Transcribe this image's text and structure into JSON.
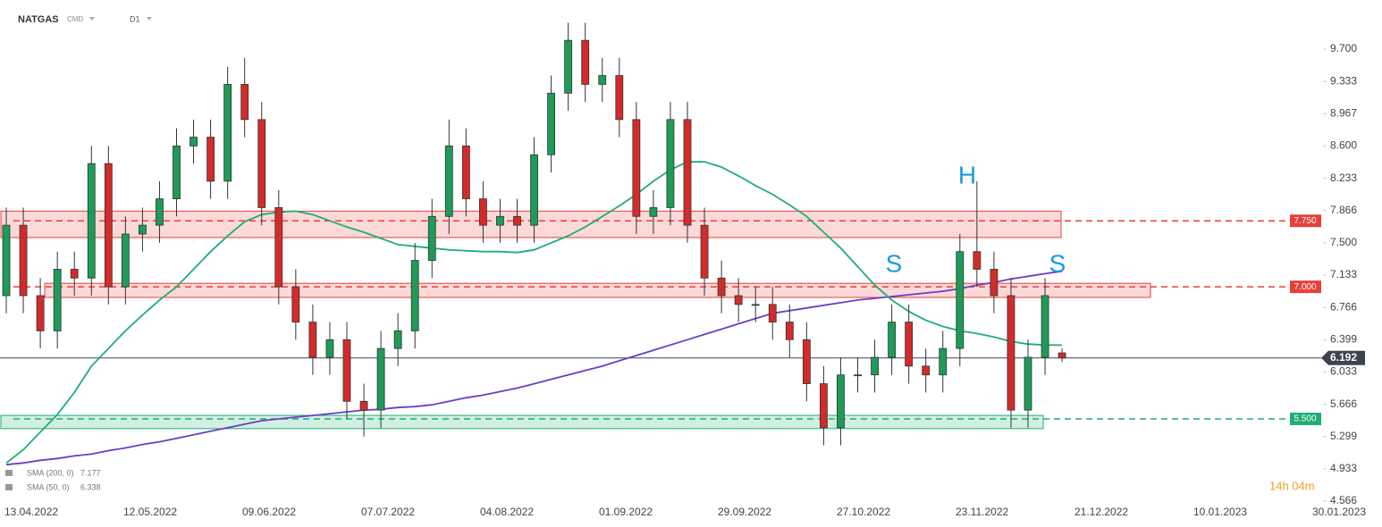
{
  "chart_data": {
    "type": "candlestick",
    "title": "NATGAS",
    "instrument_type": "CMD",
    "interval": "D1",
    "countdown": "14h 04m",
    "x_labels": [
      "13.04.2022",
      "12.05.2022",
      "09.06.2022",
      "07.07.2022",
      "04.08.2022",
      "01.09.2022",
      "29.09.2022",
      "27.10.2022",
      "23.11.2022",
      "21.12.2022",
      "10.01.2023",
      "30.01.2023"
    ],
    "up_color": "#1e9b58",
    "down_color": "#d22b2b",
    "open": [
      6.9,
      7.7,
      6.9,
      6.5,
      7.2,
      7.1,
      8.4,
      7.0,
      7.6,
      7.7,
      8.0,
      8.6,
      8.7,
      8.2,
      9.3,
      8.9,
      7.9,
      7.0,
      6.6,
      6.2,
      6.4,
      5.7,
      5.6,
      6.3,
      6.5,
      7.3,
      7.8,
      8.6,
      8.0,
      7.7,
      7.8,
      7.7,
      8.5,
      9.2,
      9.8,
      9.3,
      9.4,
      8.9,
      7.8,
      7.9,
      8.9,
      7.7,
      7.1,
      6.9,
      6.8,
      6.8,
      6.6,
      6.4,
      5.9,
      5.4,
      6.0,
      6.0,
      6.2,
      6.6,
      6.1,
      6.0,
      6.3,
      7.4,
      7.2,
      6.9,
      5.6,
      6.2,
      6.25
    ],
    "high": [
      7.9,
      7.9,
      7.1,
      7.4,
      7.4,
      8.6,
      8.6,
      7.8,
      7.9,
      8.2,
      8.8,
      8.9,
      8.9,
      9.5,
      9.6,
      9.1,
      8.1,
      7.2,
      6.8,
      6.6,
      6.6,
      5.9,
      6.5,
      6.7,
      7.5,
      8.0,
      8.9,
      8.8,
      8.2,
      8.0,
      8.0,
      8.7,
      9.4,
      10.0,
      10.0,
      9.6,
      9.6,
      9.1,
      8.1,
      9.1,
      9.1,
      7.9,
      7.3,
      7.1,
      7.0,
      7.0,
      6.8,
      6.6,
      6.1,
      6.2,
      6.2,
      6.4,
      6.8,
      6.8,
      6.3,
      6.5,
      7.6,
      8.2,
      7.4,
      7.1,
      6.4,
      7.1,
      6.3
    ],
    "low": [
      6.7,
      6.7,
      6.3,
      6.3,
      6.9,
      6.9,
      6.8,
      6.8,
      7.4,
      7.5,
      7.8,
      8.4,
      8.0,
      8.0,
      8.7,
      7.7,
      6.8,
      6.4,
      6.0,
      6.0,
      5.5,
      5.3,
      5.4,
      6.1,
      6.3,
      7.1,
      7.6,
      7.8,
      7.5,
      7.5,
      7.5,
      7.5,
      8.3,
      9.0,
      9.1,
      9.1,
      8.7,
      7.6,
      7.6,
      7.7,
      7.5,
      6.9,
      6.7,
      6.6,
      6.6,
      6.4,
      6.2,
      5.7,
      5.2,
      5.2,
      5.8,
      5.8,
      6.0,
      5.9,
      5.8,
      5.8,
      6.1,
      7.0,
      6.7,
      5.4,
      5.4,
      6.0,
      6.15
    ],
    "close": [
      7.7,
      6.9,
      6.5,
      7.2,
      7.1,
      8.4,
      7.0,
      7.6,
      7.7,
      8.0,
      8.6,
      8.7,
      8.2,
      9.3,
      8.9,
      7.9,
      7.0,
      6.6,
      6.2,
      6.4,
      5.7,
      5.6,
      6.3,
      6.5,
      7.3,
      7.8,
      8.6,
      8.0,
      7.7,
      7.8,
      7.7,
      8.5,
      9.2,
      9.8,
      9.3,
      9.4,
      8.9,
      7.8,
      7.9,
      8.9,
      7.7,
      7.1,
      6.9,
      6.8,
      6.8,
      6.6,
      6.4,
      5.9,
      5.4,
      6.0,
      6.0,
      6.2,
      6.6,
      6.1,
      6.0,
      6.3,
      7.4,
      7.2,
      6.9,
      5.6,
      6.2,
      6.9,
      6.192
    ],
    "series": [
      {
        "name": "SMA (200, 0)",
        "color": "#6a3fc4",
        "values": [
          4.98,
          5.0,
          5.03,
          5.05,
          5.08,
          5.1,
          5.14,
          5.17,
          5.21,
          5.24,
          5.28,
          5.32,
          5.36,
          5.4,
          5.44,
          5.48,
          5.5,
          5.52,
          5.54,
          5.56,
          5.58,
          5.6,
          5.61,
          5.63,
          5.64,
          5.66,
          5.7,
          5.74,
          5.77,
          5.81,
          5.85,
          5.9,
          5.95,
          6.0,
          6.05,
          6.1,
          6.16,
          6.22,
          6.28,
          6.34,
          6.4,
          6.46,
          6.52,
          6.58,
          6.64,
          6.7,
          6.73,
          6.76,
          6.79,
          6.82,
          6.85,
          6.87,
          6.89,
          6.91,
          6.93,
          6.95,
          6.98,
          7.02,
          7.05,
          7.09,
          7.12,
          7.15,
          7.177
        ]
      },
      {
        "name": "SMA (50, 0)",
        "color": "#1fae74",
        "values": [
          5.0,
          5.15,
          5.35,
          5.55,
          5.8,
          6.1,
          6.3,
          6.5,
          6.68,
          6.85,
          7.0,
          7.2,
          7.4,
          7.58,
          7.74,
          7.82,
          7.85,
          7.86,
          7.82,
          7.75,
          7.68,
          7.62,
          7.55,
          7.48,
          7.46,
          7.44,
          7.42,
          7.41,
          7.4,
          7.4,
          7.39,
          7.42,
          7.5,
          7.58,
          7.68,
          7.8,
          7.92,
          8.05,
          8.2,
          8.33,
          8.42,
          8.42,
          8.36,
          8.26,
          8.15,
          8.05,
          7.93,
          7.8,
          7.62,
          7.44,
          7.23,
          7.02,
          6.85,
          6.72,
          6.62,
          6.55,
          6.5,
          6.47,
          6.43,
          6.38,
          6.35,
          6.34,
          6.338
        ]
      }
    ],
    "zones": [
      {
        "from": 7.56,
        "to": 7.86,
        "color": "#e8403a"
      },
      {
        "from": 6.88,
        "to": 7.04,
        "color": "#e8403a"
      },
      {
        "from": 5.39,
        "to": 5.54,
        "color": "#1fae74"
      }
    ],
    "levels": [
      {
        "value": 7.75,
        "label": "7.750",
        "color": "#e8403a"
      },
      {
        "value": 7.0,
        "label": "7.000",
        "color": "#e8403a"
      },
      {
        "value": 5.5,
        "label": "5.500",
        "color": "#1fae74"
      }
    ],
    "current_price": 6.192,
    "annotations": [
      "S",
      "H",
      "S"
    ],
    "ylim": [
      4.526,
      10.258
    ],
    "yticks": [
      {
        "value": 9.7,
        "label": "9.700"
      },
      {
        "value": 9.333,
        "label": "9.333"
      },
      {
        "value": 8.967,
        "label": "8.967"
      },
      {
        "value": 8.6,
        "label": "8.600"
      },
      {
        "value": 8.233,
        "label": "8.233"
      },
      {
        "value": 7.866,
        "label": "7.866"
      },
      {
        "value": 7.5,
        "label": "7.500"
      },
      {
        "value": 7.133,
        "label": "7.133"
      },
      {
        "value": 6.766,
        "label": "6.766"
      },
      {
        "value": 6.399,
        "label": "6.399"
      },
      {
        "value": 6.033,
        "label": "6.033"
      },
      {
        "value": 5.666,
        "label": "5.666"
      },
      {
        "value": 5.299,
        "label": "5.299"
      },
      {
        "value": 4.933,
        "label": "4.933"
      },
      {
        "value": 4.566,
        "label": "4.566"
      }
    ]
  }
}
